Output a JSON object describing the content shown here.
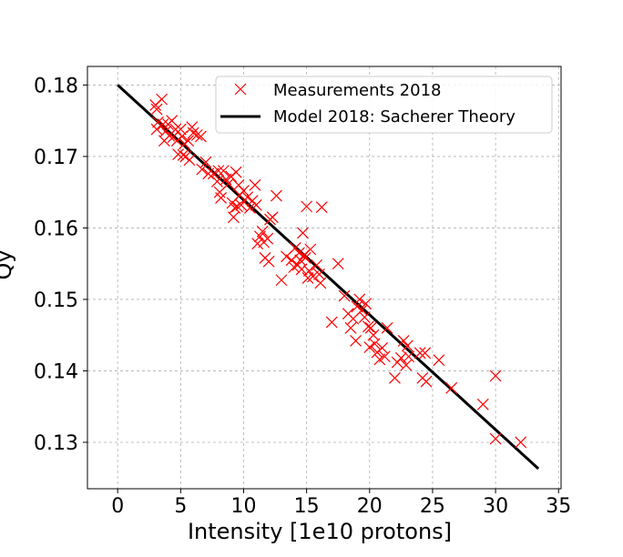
{
  "chart_data": {
    "type": "scatter",
    "xlabel": "Intensity [1e10 protons]",
    "ylabel": "Qy",
    "xlim": [
      -2.4,
      35.2
    ],
    "ylim": [
      0.1235,
      0.1826
    ],
    "xticks": [
      0,
      5,
      10,
      15,
      20,
      25,
      30,
      35
    ],
    "yticks": [
      0.13,
      0.14,
      0.15,
      0.16,
      0.17,
      0.18
    ],
    "ytick_labels": [
      "0.13",
      "0.14",
      "0.15",
      "0.16",
      "0.17",
      "0.18"
    ],
    "grid": true,
    "legend_position": "top-right",
    "colors": {
      "measurements": "#ff0000",
      "model": "#000000"
    },
    "series": [
      {
        "name": "Measurements 2018",
        "kind": "scatter",
        "marker": "x",
        "points": [
          [
            3.0,
            0.1772
          ],
          [
            3.1,
            0.1766
          ],
          [
            3.2,
            0.1748
          ],
          [
            3.1,
            0.1738
          ],
          [
            3.5,
            0.178
          ],
          [
            3.6,
            0.1745
          ],
          [
            3.8,
            0.1735
          ],
          [
            3.7,
            0.1722
          ],
          [
            4.0,
            0.1745
          ],
          [
            4.1,
            0.1729
          ],
          [
            4.3,
            0.175
          ],
          [
            4.4,
            0.1727
          ],
          [
            4.6,
            0.1738
          ],
          [
            4.7,
            0.1722
          ],
          [
            4.8,
            0.1703
          ],
          [
            5.0,
            0.1738
          ],
          [
            5.1,
            0.1728
          ],
          [
            5.2,
            0.1702
          ],
          [
            5.3,
            0.1718
          ],
          [
            5.4,
            0.17
          ],
          [
            5.6,
            0.1722
          ],
          [
            5.7,
            0.1695
          ],
          [
            5.9,
            0.1741
          ],
          [
            6.0,
            0.1733
          ],
          [
            6.3,
            0.173
          ],
          [
            6.6,
            0.1728
          ],
          [
            6.7,
            0.1682
          ],
          [
            7.0,
            0.1692
          ],
          [
            7.2,
            0.1676
          ],
          [
            7.6,
            0.1676
          ],
          [
            7.9,
            0.1665
          ],
          [
            8.0,
            0.168
          ],
          [
            8.1,
            0.165
          ],
          [
            8.2,
            0.1642
          ],
          [
            8.4,
            0.168
          ],
          [
            8.6,
            0.1668
          ],
          [
            8.8,
            0.1662
          ],
          [
            9.0,
            0.1672
          ],
          [
            9.1,
            0.1635
          ],
          [
            9.2,
            0.1615
          ],
          [
            9.3,
            0.1628
          ],
          [
            9.4,
            0.1678
          ],
          [
            9.5,
            0.163
          ],
          [
            9.6,
            0.166
          ],
          [
            9.7,
            0.1646
          ],
          [
            9.8,
            0.1632
          ],
          [
            10.0,
            0.1652
          ],
          [
            10.3,
            0.1643
          ],
          [
            10.5,
            0.1628
          ],
          [
            10.7,
            0.1638
          ],
          [
            10.9,
            0.166
          ],
          [
            11.0,
            0.1632
          ],
          [
            11.1,
            0.1578
          ],
          [
            11.3,
            0.1588
          ],
          [
            11.5,
            0.1595
          ],
          [
            11.6,
            0.158
          ],
          [
            11.7,
            0.1558
          ],
          [
            11.9,
            0.1585
          ],
          [
            12.0,
            0.1553
          ],
          [
            12.1,
            0.1612
          ],
          [
            12.3,
            0.1615
          ],
          [
            12.6,
            0.1645
          ],
          [
            13.0,
            0.1527
          ],
          [
            13.4,
            0.156
          ],
          [
            13.8,
            0.1555
          ],
          [
            14.0,
            0.1545
          ],
          [
            14.1,
            0.1572
          ],
          [
            14.3,
            0.1548
          ],
          [
            14.4,
            0.1565
          ],
          [
            14.5,
            0.1555
          ],
          [
            14.6,
            0.1542
          ],
          [
            14.7,
            0.1593
          ],
          [
            14.8,
            0.1562
          ],
          [
            14.9,
            0.1558
          ],
          [
            15.0,
            0.163
          ],
          [
            15.1,
            0.153
          ],
          [
            15.2,
            0.154
          ],
          [
            15.3,
            0.157
          ],
          [
            15.5,
            0.1532
          ],
          [
            15.8,
            0.1548
          ],
          [
            16.0,
            0.1535
          ],
          [
            16.1,
            0.1523
          ],
          [
            16.2,
            0.1629
          ],
          [
            17.0,
            0.1468
          ],
          [
            17.5,
            0.155
          ],
          [
            18.0,
            0.1505
          ],
          [
            18.3,
            0.148
          ],
          [
            18.5,
            0.146
          ],
          [
            18.7,
            0.1473
          ],
          [
            18.9,
            0.1442
          ],
          [
            19.0,
            0.149
          ],
          [
            19.2,
            0.15
          ],
          [
            19.4,
            0.1485
          ],
          [
            19.6,
            0.1475
          ],
          [
            19.7,
            0.1494
          ],
          [
            19.9,
            0.1462
          ],
          [
            20.0,
            0.1433
          ],
          [
            20.1,
            0.146
          ],
          [
            20.3,
            0.145
          ],
          [
            20.4,
            0.1438
          ],
          [
            20.6,
            0.1426
          ],
          [
            20.8,
            0.1416
          ],
          [
            21.0,
            0.1432
          ],
          [
            21.2,
            0.142
          ],
          [
            21.4,
            0.146
          ],
          [
            22.0,
            0.139
          ],
          [
            22.2,
            0.1412
          ],
          [
            22.5,
            0.1418
          ],
          [
            22.7,
            0.1442
          ],
          [
            22.9,
            0.1408
          ],
          [
            23.0,
            0.1435
          ],
          [
            23.1,
            0.142
          ],
          [
            24.0,
            0.1425
          ],
          [
            24.2,
            0.139
          ],
          [
            24.4,
            0.1425
          ],
          [
            24.5,
            0.1385
          ],
          [
            25.5,
            0.1415
          ],
          [
            26.5,
            0.1376
          ],
          [
            29.0,
            0.1353
          ],
          [
            30.0,
            0.1393
          ],
          [
            30.0,
            0.1305
          ],
          [
            32.0,
            0.13
          ]
        ]
      },
      {
        "name": "Model 2018: Sacherer Theory",
        "kind": "line",
        "points": [
          [
            0,
            0.18
          ],
          [
            33.4,
            0.1263
          ]
        ]
      }
    ]
  }
}
